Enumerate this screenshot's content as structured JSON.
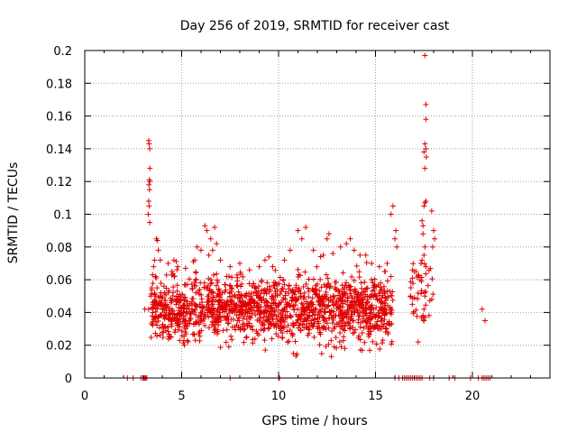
{
  "chart_data": {
    "type": "scatter",
    "title": "Day 256 of 2019, SRMTID for receiver cast",
    "xlabel": "GPS time / hours",
    "ylabel": "SRMTID / TECUs",
    "xlim": [
      0,
      24
    ],
    "ylim": [
      0,
      0.2
    ],
    "x_ticks": [
      0,
      5,
      10,
      15,
      20
    ],
    "x_tick_labels": [
      "0",
      "5",
      "10",
      "15",
      "20"
    ],
    "y_ticks": [
      0,
      0.02,
      0.04,
      0.06,
      0.08,
      0.1,
      0.12,
      0.14,
      0.16,
      0.18,
      0.2
    ],
    "y_tick_labels": [
      "0",
      "0.02",
      "0.04",
      "0.06",
      "0.08",
      "0.1",
      "0.12",
      "0.14",
      "0.16",
      "0.18",
      "0.2"
    ],
    "grid": true,
    "marker": "+",
    "color": "#e00000",
    "series": [
      {
        "name": "SRMTID",
        "points": [
          [
            3.3,
            0.145
          ],
          [
            3.32,
            0.143
          ],
          [
            3.35,
            0.14
          ],
          [
            3.36,
            0.128
          ],
          [
            3.33,
            0.121
          ],
          [
            3.36,
            0.12
          ],
          [
            3.31,
            0.118
          ],
          [
            3.34,
            0.115
          ],
          [
            3.3,
            0.108
          ],
          [
            3.32,
            0.105
          ],
          [
            3.28,
            0.1
          ],
          [
            3.35,
            0.095
          ],
          [
            3.1,
            0.042
          ],
          [
            3.3,
            0.042
          ],
          [
            3.4,
            0.05
          ],
          [
            3.45,
            0.055
          ],
          [
            3.5,
            0.063
          ],
          [
            3.55,
            0.068
          ],
          [
            3.6,
            0.072
          ],
          [
            3.7,
            0.085
          ],
          [
            3.75,
            0.084
          ],
          [
            3.8,
            0.078
          ],
          [
            3.65,
            0.062
          ],
          [
            3.9,
            0.072
          ],
          [
            4.3,
            0.07
          ],
          [
            4.6,
            0.072
          ],
          [
            4.5,
            0.065
          ],
          [
            4.8,
            0.068
          ],
          [
            5.2,
            0.067
          ],
          [
            5.6,
            0.071
          ],
          [
            5.8,
            0.08
          ],
          [
            6.0,
            0.078
          ],
          [
            6.2,
            0.093
          ],
          [
            6.3,
            0.09
          ],
          [
            6.5,
            0.085
          ],
          [
            6.7,
            0.092
          ],
          [
            6.6,
            0.078
          ],
          [
            6.8,
            0.082
          ],
          [
            6.4,
            0.075
          ],
          [
            7.0,
            0.072
          ],
          [
            7.5,
            0.068
          ],
          [
            8.0,
            0.07
          ],
          [
            8.5,
            0.066
          ],
          [
            9.0,
            0.068
          ],
          [
            9.3,
            0.072
          ],
          [
            9.5,
            0.074
          ],
          [
            9.7,
            0.068
          ],
          [
            10.3,
            0.072
          ],
          [
            10.6,
            0.078
          ],
          [
            11.0,
            0.09
          ],
          [
            11.2,
            0.085
          ],
          [
            11.4,
            0.092
          ],
          [
            11.8,
            0.078
          ],
          [
            12.3,
            0.075
          ],
          [
            12.5,
            0.085
          ],
          [
            12.6,
            0.088
          ],
          [
            12.8,
            0.076
          ],
          [
            13.2,
            0.08
          ],
          [
            13.5,
            0.082
          ],
          [
            13.7,
            0.085
          ],
          [
            13.9,
            0.078
          ],
          [
            14.2,
            0.075
          ],
          [
            14.5,
            0.075
          ],
          [
            14.8,
            0.07
          ],
          [
            15.2,
            0.068
          ],
          [
            15.5,
            0.065
          ],
          [
            15.8,
            0.062
          ],
          [
            15.6,
            0.07
          ],
          [
            15.8,
            0.1
          ],
          [
            15.9,
            0.105
          ],
          [
            16.0,
            0.085
          ],
          [
            16.1,
            0.08
          ],
          [
            16.05,
            0.09
          ],
          [
            16.8,
            0.05
          ],
          [
            16.9,
            0.045
          ],
          [
            17.0,
            0.065
          ],
          [
            17.2,
            0.022
          ],
          [
            17.3,
            0.06
          ],
          [
            17.35,
            0.07
          ],
          [
            17.4,
            0.096
          ],
          [
            17.45,
            0.093
          ],
          [
            17.5,
            0.105
          ],
          [
            17.55,
            0.107
          ],
          [
            17.6,
            0.108
          ],
          [
            17.45,
            0.088
          ],
          [
            17.55,
            0.08
          ],
          [
            17.5,
            0.075
          ],
          [
            17.4,
            0.072
          ],
          [
            17.6,
            0.068
          ],
          [
            17.55,
            0.05
          ],
          [
            17.5,
            0.042
          ],
          [
            17.45,
            0.038
          ],
          [
            17.5,
            0.035
          ],
          [
            17.55,
            0.197
          ],
          [
            17.6,
            0.167
          ],
          [
            17.6,
            0.158
          ],
          [
            17.55,
            0.143
          ],
          [
            17.6,
            0.14
          ],
          [
            17.5,
            0.138
          ],
          [
            17.62,
            0.135
          ],
          [
            17.55,
            0.128
          ],
          [
            17.9,
            0.102
          ],
          [
            18.0,
            0.09
          ],
          [
            18.05,
            0.085
          ],
          [
            17.95,
            0.08
          ],
          [
            20.5,
            0.042
          ],
          [
            20.65,
            0.035
          ],
          [
            2.2,
            0
          ],
          [
            2.5,
            0
          ],
          [
            2.9,
            0
          ],
          [
            3.0,
            0
          ],
          [
            3.05,
            0
          ],
          [
            3.1,
            0
          ],
          [
            3.15,
            0
          ],
          [
            3.2,
            0
          ],
          [
            7.5,
            0
          ],
          [
            10.0,
            0
          ],
          [
            10.05,
            0
          ],
          [
            16.0,
            0
          ],
          [
            16.2,
            0
          ],
          [
            16.4,
            0
          ],
          [
            16.5,
            0
          ],
          [
            16.6,
            0
          ],
          [
            16.7,
            0
          ],
          [
            16.8,
            0
          ],
          [
            16.9,
            0
          ],
          [
            17.0,
            0
          ],
          [
            17.1,
            0
          ],
          [
            17.2,
            0
          ],
          [
            17.3,
            0
          ],
          [
            17.4,
            0
          ],
          [
            17.8,
            0
          ],
          [
            18.0,
            0
          ],
          [
            18.8,
            0
          ],
          [
            19.1,
            0
          ],
          [
            19.9,
            0
          ],
          [
            20.3,
            0
          ],
          [
            20.5,
            0
          ],
          [
            20.6,
            0
          ],
          [
            20.7,
            0
          ],
          [
            20.8,
            0
          ],
          [
            20.9,
            0
          ]
        ]
      }
    ]
  }
}
